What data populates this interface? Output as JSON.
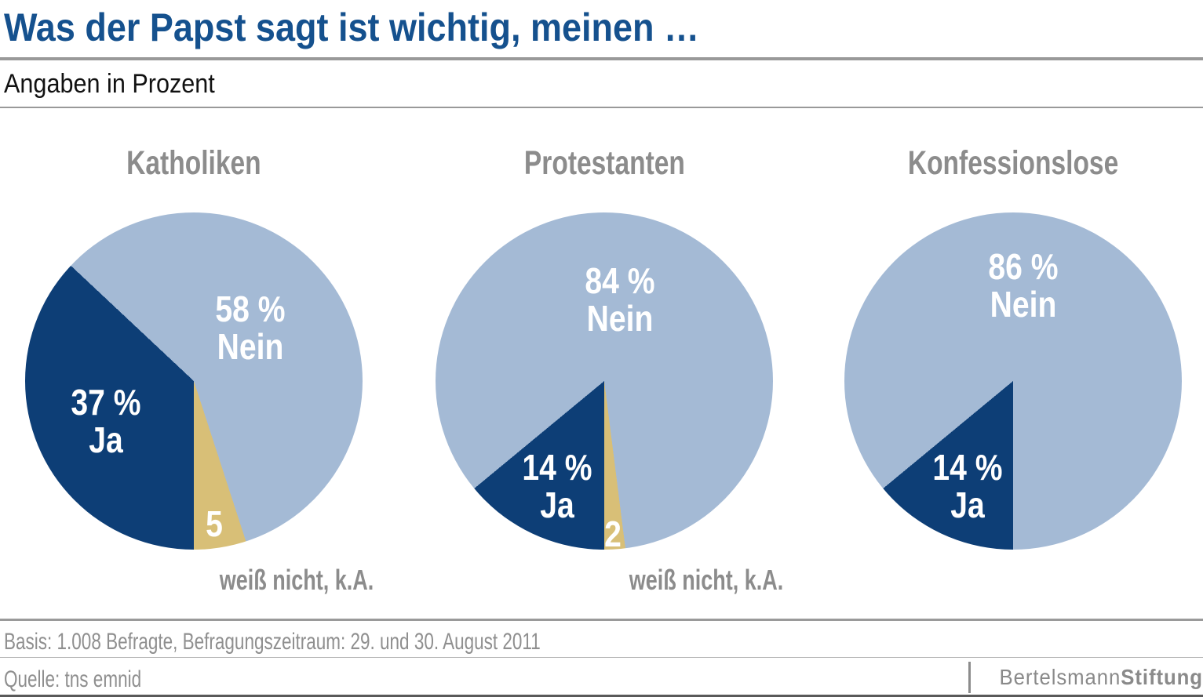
{
  "header": {
    "title": "Was der Papst sagt ist wichtig, meinen …",
    "subtitle": "Angaben in Prozent"
  },
  "chart_data": {
    "type": "pie",
    "title": "Was der Papst sagt ist wichtig, meinen …",
    "unit": "Prozent",
    "legend_position": "labels-inside-slices",
    "start_angle_deg": 180,
    "direction": "clockwise",
    "colors": {
      "ja": "#0d3e76",
      "nein": "#a4bad5",
      "weiss_nicht": "#d8bf77"
    },
    "pies": [
      {
        "title": "Katholiken",
        "caption": "weiß nicht, k.A.",
        "slices": [
          {
            "name": "Ja",
            "value": 37,
            "color_key": "ja",
            "label_value": "37 %",
            "label_name": "Ja"
          },
          {
            "name": "Nein",
            "value": 58,
            "color_key": "nein",
            "label_value": "58 %",
            "label_name": "Nein"
          },
          {
            "name": "weiß nicht, k.A.",
            "value": 5,
            "color_key": "weiss_nicht",
            "label_value": "5",
            "label_name": ""
          }
        ]
      },
      {
        "title": "Protestanten",
        "caption": "weiß nicht, k.A.",
        "slices": [
          {
            "name": "Ja",
            "value": 14,
            "color_key": "ja",
            "label_value": "14 %",
            "label_name": "Ja"
          },
          {
            "name": "Nein",
            "value": 84,
            "color_key": "nein",
            "label_value": "84 %",
            "label_name": "Nein"
          },
          {
            "name": "weiß nicht, k.A.",
            "value": 2,
            "color_key": "weiss_nicht",
            "label_value": "2",
            "label_name": ""
          }
        ]
      },
      {
        "title": "Konfessionslose",
        "caption": "",
        "slices": [
          {
            "name": "Ja",
            "value": 14,
            "color_key": "ja",
            "label_value": "14 %",
            "label_name": "Ja"
          },
          {
            "name": "Nein",
            "value": 86,
            "color_key": "nein",
            "label_value": "86 %",
            "label_name": "Nein"
          }
        ]
      }
    ]
  },
  "footer": {
    "basis": "Basis: 1.008 Befragte, Befragungszeitraum: 29. und 30. August 2011",
    "quelle": "Quelle: tns emnid",
    "logo_regular": "Bertelsmann",
    "logo_bold": "Stiftung"
  }
}
